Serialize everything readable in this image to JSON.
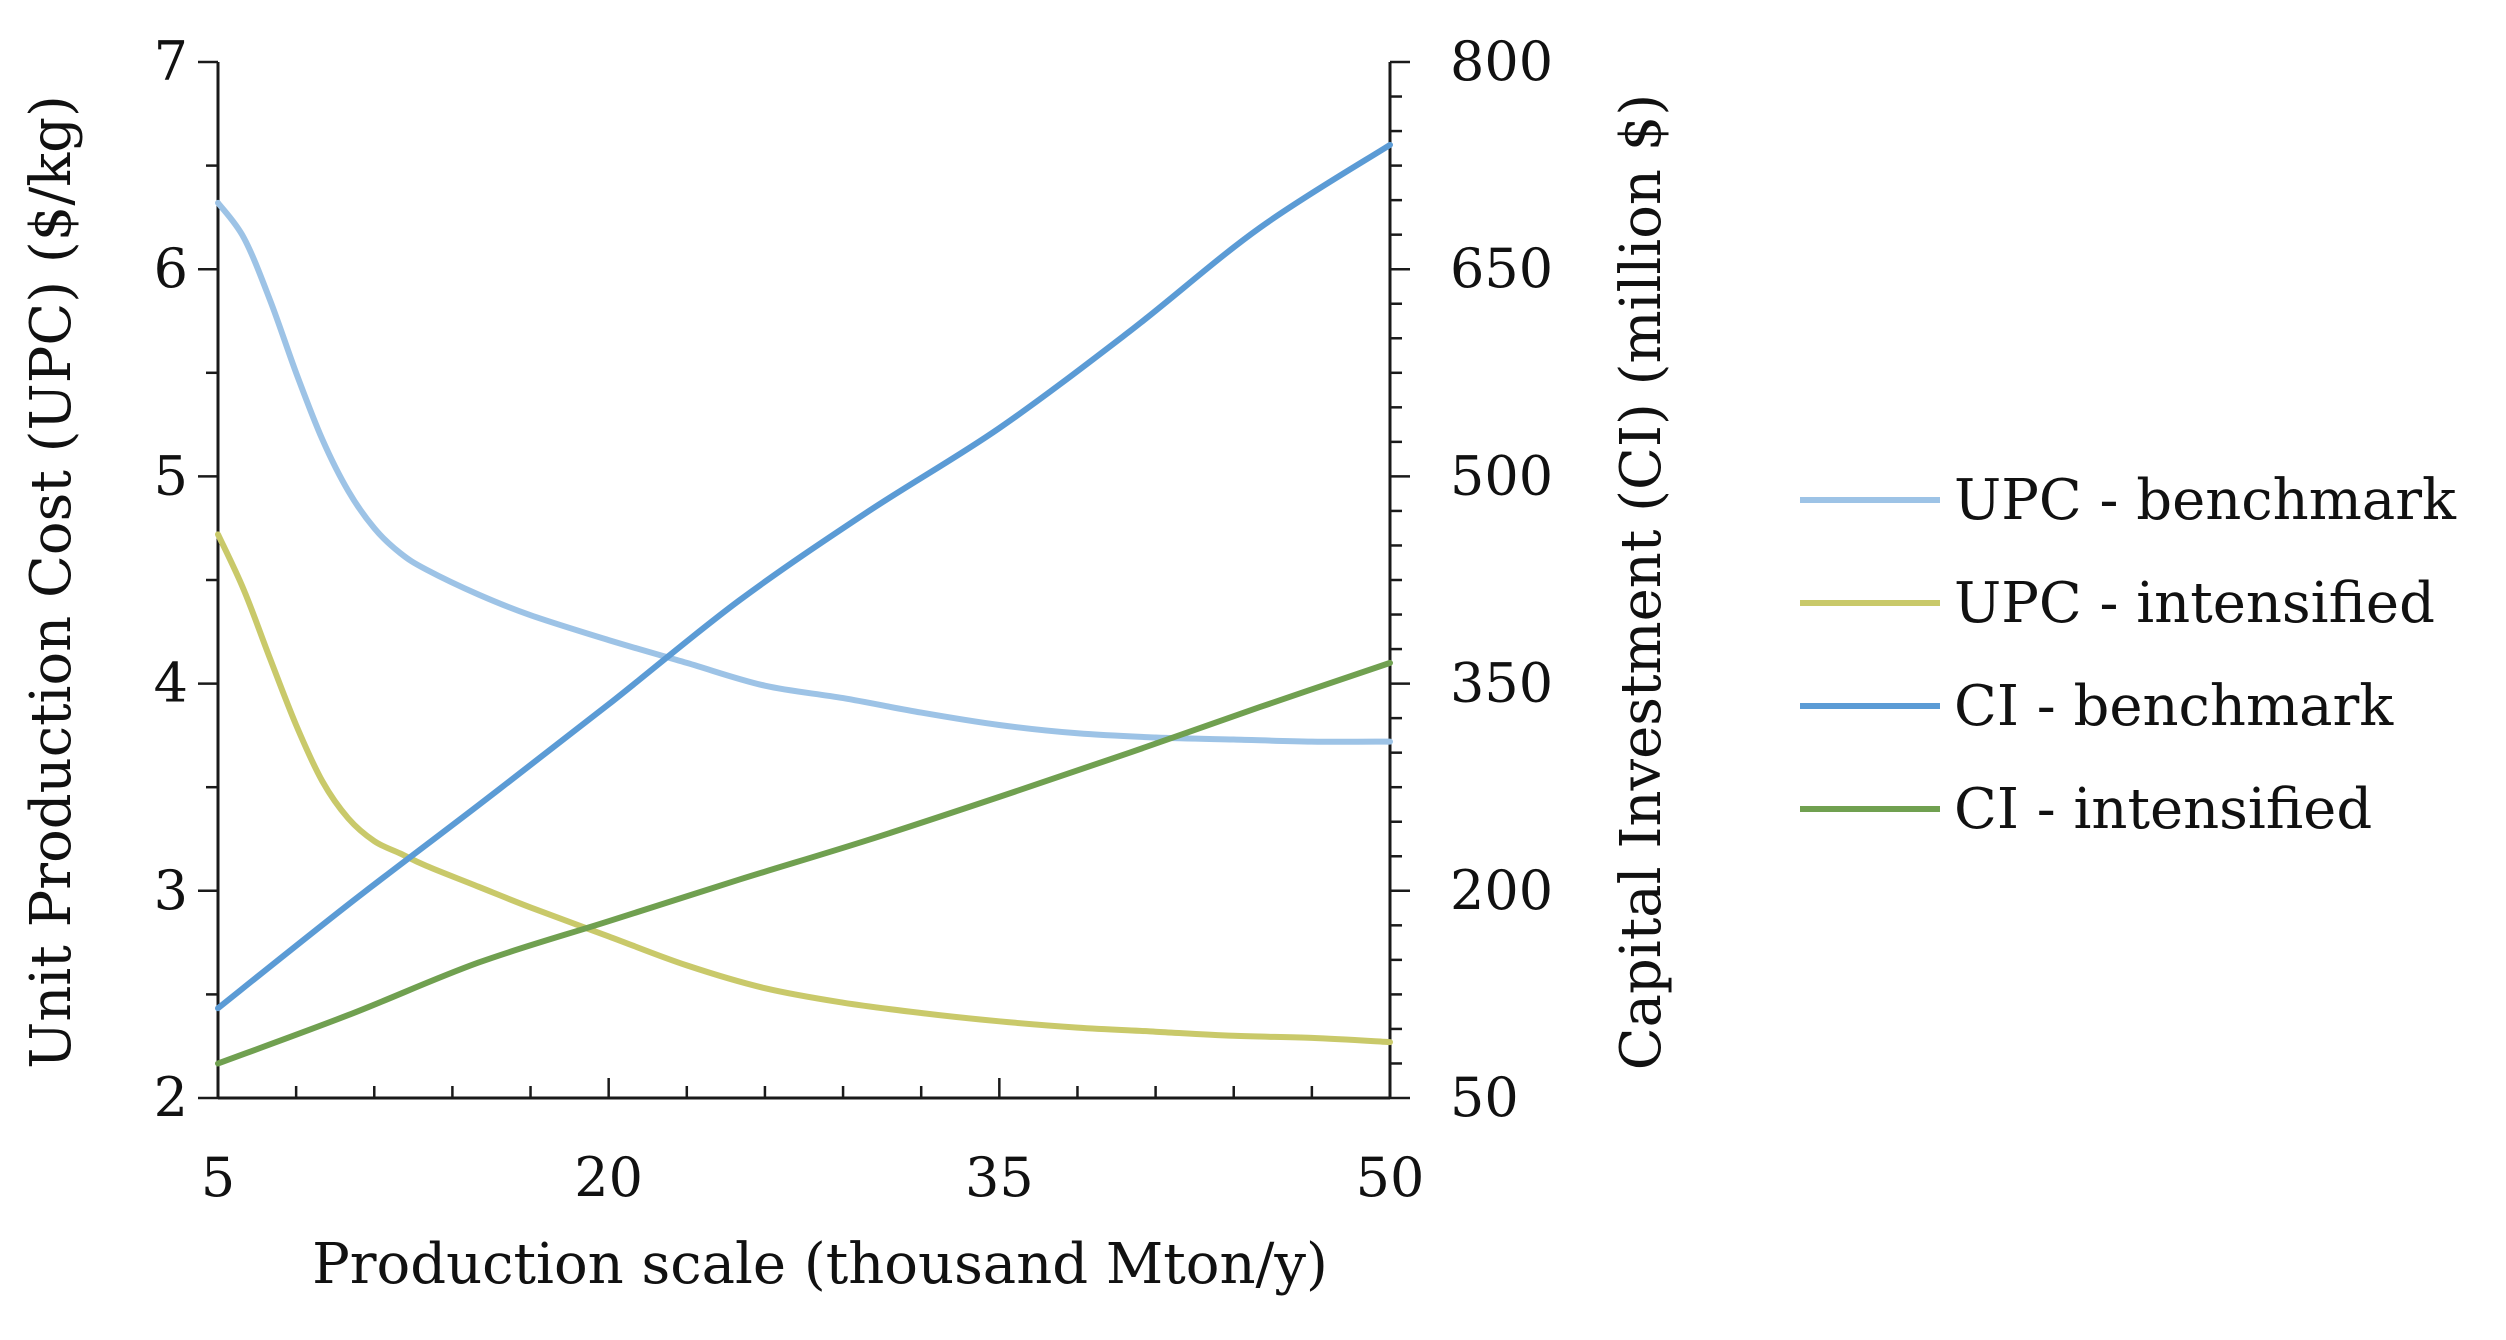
{
  "chart_data": {
    "type": "line",
    "xlabel": "Production scale (thousand Mton/y)",
    "y1label": "Unit Production Cost (UPC) ($/kg)",
    "y2label": "Capital Investment (CI) (million $)",
    "xlim": [
      5,
      50
    ],
    "y1lim": [
      2,
      7
    ],
    "y2lim": [
      50,
      800
    ],
    "x_ticks": [
      5,
      20,
      35,
      50
    ],
    "y1_ticks": [
      2,
      3,
      4,
      5,
      6,
      7
    ],
    "y2_ticks": [
      50,
      200,
      350,
      500,
      650,
      800
    ],
    "grid": false,
    "legend_position": "right",
    "series": [
      {
        "name": "UPC - benchmark",
        "axis": "left",
        "color": "#9dc3e6",
        "x": [
          5,
          6,
          7,
          8,
          9,
          10,
          11,
          12,
          13,
          15,
          17,
          20,
          23,
          26,
          29,
          32,
          35,
          38,
          41,
          44,
          47,
          50
        ],
        "values": [
          6.32,
          6.15,
          5.85,
          5.5,
          5.18,
          4.93,
          4.75,
          4.63,
          4.55,
          4.43,
          4.33,
          4.21,
          4.1,
          3.99,
          3.93,
          3.86,
          3.8,
          3.76,
          3.74,
          3.73,
          3.72,
          3.72
        ]
      },
      {
        "name": "UPC - intensified",
        "axis": "left",
        "color": "#c9c96a",
        "x": [
          5,
          6,
          7,
          8,
          9,
          10,
          11,
          12,
          13,
          15,
          17,
          20,
          23,
          26,
          29,
          32,
          35,
          38,
          41,
          44,
          47,
          50
        ],
        "values": [
          4.72,
          4.45,
          4.12,
          3.8,
          3.53,
          3.35,
          3.24,
          3.18,
          3.12,
          3.02,
          2.92,
          2.78,
          2.64,
          2.53,
          2.46,
          2.41,
          2.37,
          2.34,
          2.32,
          2.3,
          2.29,
          2.27
        ]
      },
      {
        "name": "CI - benchmark",
        "axis": "right",
        "color": "#5b9bd5",
        "x": [
          5,
          10,
          15,
          20,
          25,
          30,
          35,
          40,
          45,
          50
        ],
        "values": [
          115,
          190,
          262,
          335,
          410,
          475,
          535,
          605,
          680,
          740
        ]
      },
      {
        "name": "CI - intensified",
        "axis": "right",
        "color": "#70a050",
        "x": [
          5,
          10,
          15,
          20,
          25,
          30,
          35,
          40,
          45,
          50
        ],
        "values": [
          75,
          110,
          148,
          178,
          208,
          237,
          268,
          300,
          333,
          365
        ]
      }
    ]
  }
}
